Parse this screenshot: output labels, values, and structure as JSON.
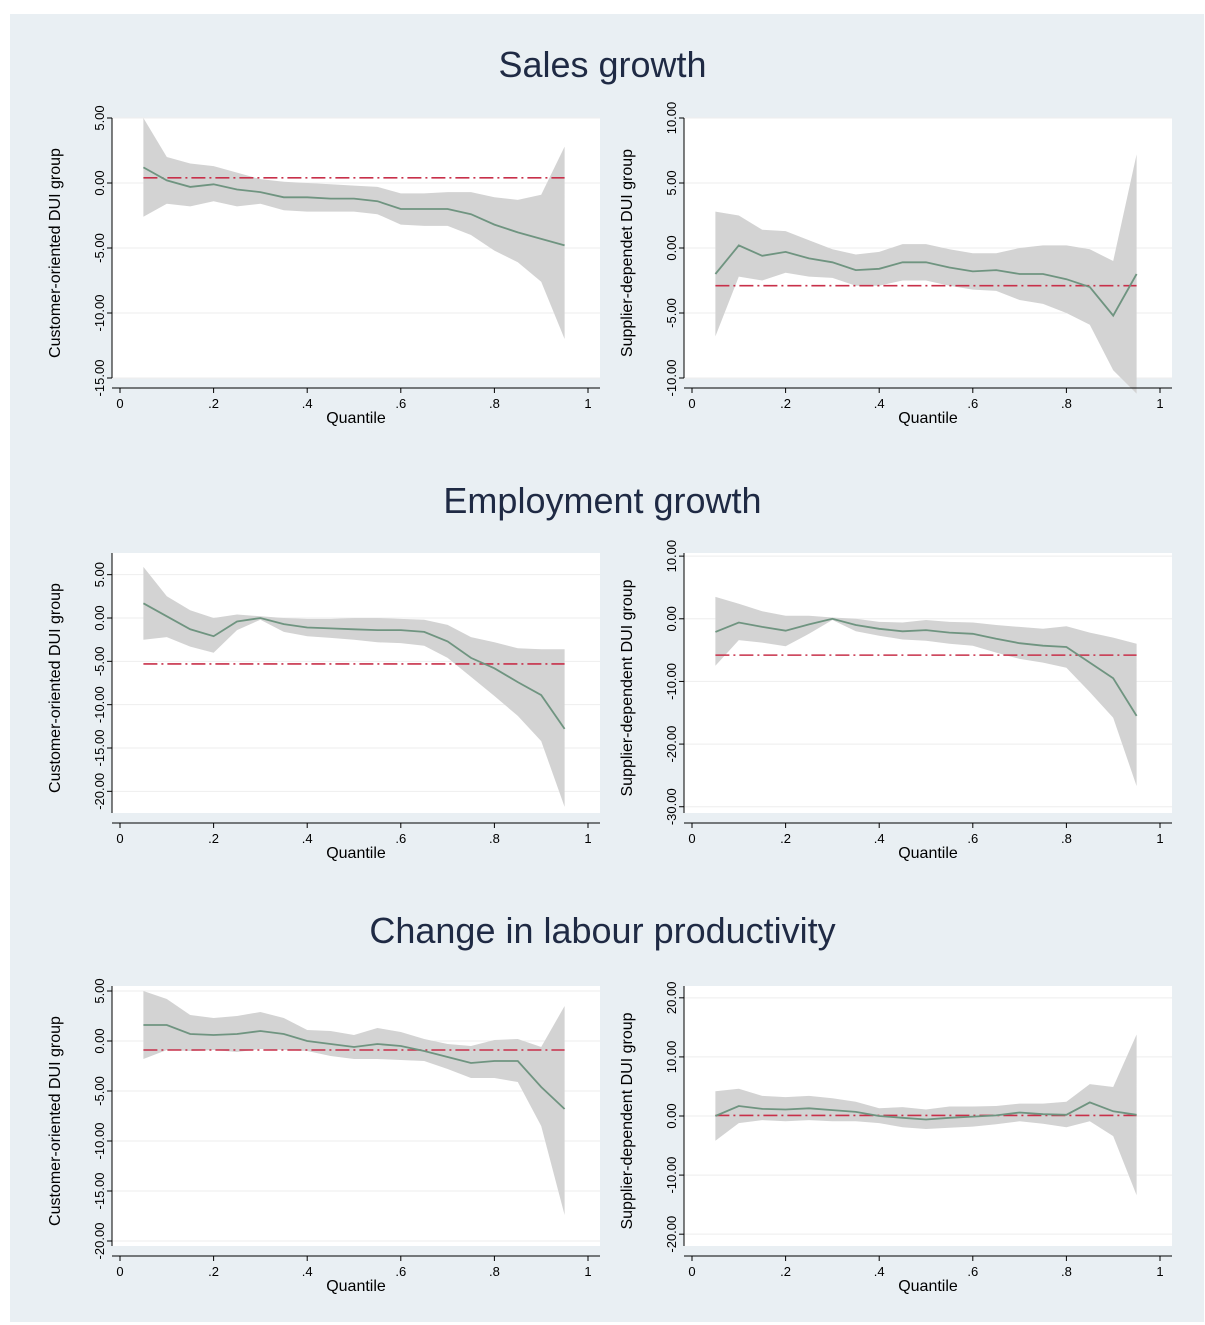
{
  "colors": {
    "band": "#d3d3d3",
    "line": "#6f9480",
    "ref": "#c8304a",
    "background": "#e9eff3",
    "plot": "#ffffff",
    "title": "#1f2a44"
  },
  "sections": [
    {
      "title": "Sales growth"
    },
    {
      "title": "Employment growth"
    },
    {
      "title": "Change in labour productivity"
    }
  ],
  "chart_data": [
    {
      "type": "line",
      "section": "Sales growth",
      "xlabel": "Quantile",
      "ylabel": "Customer-oriented DUI group",
      "xlim": [
        0,
        1
      ],
      "ylim": [
        -15,
        5
      ],
      "xticks": [
        0,
        0.2,
        0.4,
        0.6,
        0.8,
        1
      ],
      "xticklabels": [
        "0",
        ".2",
        ".4",
        ".6",
        ".8",
        "1"
      ],
      "yticks": [
        5,
        0,
        -5,
        -10,
        -15
      ],
      "yticklabels": [
        "5.00",
        "0.00",
        "-5.00",
        "-10.00",
        "-15.00"
      ],
      "x": [
        0.05,
        0.1,
        0.15,
        0.2,
        0.25,
        0.3,
        0.35,
        0.4,
        0.45,
        0.5,
        0.55,
        0.6,
        0.65,
        0.7,
        0.75,
        0.8,
        0.85,
        0.9,
        0.95
      ],
      "estimate": [
        1.2,
        0.2,
        -0.3,
        -0.1,
        -0.5,
        -0.7,
        -1.1,
        -1.1,
        -1.2,
        -1.2,
        -1.4,
        -2.0,
        -2.0,
        -2.0,
        -2.4,
        -3.2,
        -3.8,
        -4.3,
        -4.8
      ],
      "ci_upper": [
        5.0,
        2.0,
        1.5,
        1.3,
        0.8,
        0.3,
        0.1,
        0.0,
        -0.1,
        -0.2,
        -0.3,
        -0.8,
        -0.8,
        -0.7,
        -0.7,
        -1.1,
        -1.3,
        -0.9,
        2.8
      ],
      "ci_lower": [
        -2.6,
        -1.6,
        -1.8,
        -1.4,
        -1.8,
        -1.6,
        -2.1,
        -2.2,
        -2.2,
        -2.2,
        -2.4,
        -3.2,
        -3.3,
        -3.3,
        -4.0,
        -5.2,
        -6.1,
        -7.6,
        -12.0
      ],
      "reference": 0.4
    },
    {
      "type": "line",
      "section": "Sales growth",
      "xlabel": "Quantile",
      "ylabel": "Supplier-dependet DUI group",
      "xlim": [
        0,
        1
      ],
      "ylim": [
        -10,
        10
      ],
      "xticks": [
        0,
        0.2,
        0.4,
        0.6,
        0.8,
        1
      ],
      "xticklabels": [
        "0",
        ".2",
        ".4",
        ".6",
        ".8",
        "1"
      ],
      "yticks": [
        10,
        5,
        0,
        -5,
        -10
      ],
      "yticklabels": [
        "10.00",
        "5.00",
        "0.00",
        "-5.00",
        "-10.00"
      ],
      "x": [
        0.05,
        0.1,
        0.15,
        0.2,
        0.25,
        0.3,
        0.35,
        0.4,
        0.45,
        0.5,
        0.55,
        0.6,
        0.65,
        0.7,
        0.75,
        0.8,
        0.85,
        0.9,
        0.95
      ],
      "estimate": [
        -2.0,
        0.2,
        -0.6,
        -0.3,
        -0.8,
        -1.1,
        -1.7,
        -1.6,
        -1.1,
        -1.1,
        -1.5,
        -1.8,
        -1.7,
        -2.0,
        -2.0,
        -2.4,
        -3.0,
        -5.2,
        -2.0
      ],
      "ci_upper": [
        2.8,
        2.5,
        1.4,
        1.3,
        0.6,
        -0.1,
        -0.5,
        -0.3,
        0.3,
        0.3,
        -0.1,
        -0.4,
        -0.4,
        0.0,
        0.2,
        0.2,
        -0.1,
        -1.0,
        7.2
      ],
      "ci_lower": [
        -6.8,
        -2.2,
        -2.5,
        -1.9,
        -2.2,
        -2.3,
        -2.9,
        -2.9,
        -2.5,
        -2.5,
        -2.9,
        -3.2,
        -3.3,
        -4.0,
        -4.3,
        -5.0,
        -5.9,
        -9.4,
        -11.2
      ],
      "reference": -2.9
    },
    {
      "type": "line",
      "section": "Employment growth",
      "xlabel": "Quantile",
      "ylabel": "Customer-oriented DUI group",
      "xlim": [
        0,
        1
      ],
      "ylim": [
        -22.5,
        7.5
      ],
      "xticks": [
        0,
        0.2,
        0.4,
        0.6,
        0.8,
        1
      ],
      "xticklabels": [
        "0",
        ".2",
        ".4",
        ".6",
        ".8",
        "1"
      ],
      "yticks": [
        5,
        0,
        -5,
        -10,
        -15,
        -20
      ],
      "yticklabels": [
        "5.00",
        "0.00",
        "-5.00",
        "-10.00",
        "-15.00",
        "-20.00"
      ],
      "x": [
        0.05,
        0.1,
        0.15,
        0.2,
        0.25,
        0.3,
        0.35,
        0.4,
        0.45,
        0.5,
        0.55,
        0.6,
        0.65,
        0.7,
        0.75,
        0.8,
        0.85,
        0.9,
        0.95
      ],
      "estimate": [
        1.7,
        0.2,
        -1.3,
        -2.1,
        -0.4,
        0.0,
        -0.7,
        -1.1,
        -1.2,
        -1.3,
        -1.4,
        -1.4,
        -1.6,
        -2.7,
        -4.6,
        -5.8,
        -7.4,
        -8.9,
        -12.8
      ],
      "ci_upper": [
        5.9,
        2.5,
        0.9,
        0.0,
        0.4,
        0.2,
        0.0,
        -0.1,
        -0.1,
        0.0,
        0.0,
        -0.1,
        -0.2,
        -0.8,
        -2.2,
        -2.8,
        -3.5,
        -3.6,
        -3.6
      ],
      "ci_lower": [
        -2.5,
        -2.2,
        -3.3,
        -4.0,
        -1.4,
        -0.2,
        -1.6,
        -2.1,
        -2.3,
        -2.5,
        -2.8,
        -2.9,
        -3.2,
        -4.6,
        -6.8,
        -9.0,
        -11.3,
        -14.2,
        -21.8
      ],
      "reference": -5.3
    },
    {
      "type": "line",
      "section": "Employment growth",
      "xlabel": "Quantile",
      "ylabel": "Supplier-dependent DUI group",
      "xlim": [
        0,
        1
      ],
      "ylim": [
        -31,
        10.5
      ],
      "xticks": [
        0,
        0.2,
        0.4,
        0.6,
        0.8,
        1
      ],
      "xticklabels": [
        "0",
        ".2",
        ".4",
        ".6",
        ".8",
        "1"
      ],
      "yticks": [
        10,
        0,
        -10,
        -20,
        -30
      ],
      "yticklabels": [
        "10.00",
        "0.00",
        "-10.00",
        "-20.00",
        "-30.00"
      ],
      "x": [
        0.05,
        0.1,
        0.15,
        0.2,
        0.25,
        0.3,
        0.35,
        0.4,
        0.45,
        0.5,
        0.55,
        0.6,
        0.65,
        0.7,
        0.75,
        0.8,
        0.85,
        0.9,
        0.95
      ],
      "estimate": [
        -2.1,
        -0.6,
        -1.3,
        -1.9,
        -0.9,
        0.0,
        -1.0,
        -1.6,
        -2.0,
        -1.8,
        -2.2,
        -2.4,
        -3.2,
        -3.9,
        -4.3,
        -4.5,
        -7.0,
        -9.5,
        -15.5
      ],
      "ci_upper": [
        3.5,
        2.4,
        1.2,
        0.5,
        0.5,
        0.2,
        0.0,
        -0.5,
        -0.6,
        -0.2,
        -0.5,
        -0.6,
        -1.0,
        -1.3,
        -1.6,
        -1.2,
        -2.2,
        -3.0,
        -4.0
      ],
      "ci_lower": [
        -7.5,
        -3.4,
        -3.8,
        -4.4,
        -2.4,
        -0.2,
        -2.0,
        -2.7,
        -3.3,
        -3.5,
        -4.0,
        -4.3,
        -5.4,
        -6.4,
        -7.0,
        -7.8,
        -11.7,
        -15.8,
        -26.7
      ],
      "reference": -5.8
    },
    {
      "type": "line",
      "section": "Change in labour productivity",
      "xlabel": "Quantile",
      "ylabel": "Customer-oriented DUI group",
      "xlim": [
        0,
        1
      ],
      "ylim": [
        -20.5,
        5.5
      ],
      "xticks": [
        0,
        0.2,
        0.4,
        0.6,
        0.8,
        1
      ],
      "xticklabels": [
        "0",
        ".2",
        ".4",
        ".6",
        ".8",
        "1"
      ],
      "yticks": [
        5,
        0,
        -5,
        -10,
        -15,
        -20
      ],
      "yticklabels": [
        "5.00",
        "0.00",
        "-5.00",
        "-10.00",
        "-15.00",
        "-20.00"
      ],
      "x": [
        0.05,
        0.1,
        0.15,
        0.2,
        0.25,
        0.3,
        0.35,
        0.4,
        0.45,
        0.5,
        0.55,
        0.6,
        0.65,
        0.7,
        0.75,
        0.8,
        0.85,
        0.9,
        0.95
      ],
      "estimate": [
        1.6,
        1.6,
        0.7,
        0.6,
        0.7,
        1.0,
        0.7,
        0.0,
        -0.3,
        -0.6,
        -0.3,
        -0.5,
        -1.0,
        -1.6,
        -2.2,
        -2.0,
        -2.0,
        -4.6,
        -6.8
      ],
      "ci_upper": [
        5.0,
        4.2,
        2.6,
        2.3,
        2.5,
        2.9,
        2.3,
        1.1,
        1.0,
        0.6,
        1.3,
        0.9,
        0.2,
        -0.3,
        -0.5,
        0.1,
        0.2,
        -0.6,
        3.5
      ],
      "ci_lower": [
        -1.8,
        -0.9,
        -1.0,
        -0.9,
        -1.1,
        -0.8,
        -0.9,
        -1.0,
        -1.5,
        -1.8,
        -1.8,
        -1.9,
        -2.0,
        -2.8,
        -3.7,
        -3.7,
        -4.1,
        -8.5,
        -17.4
      ],
      "reference": -0.9
    },
    {
      "type": "line",
      "section": "Change in labour productivity",
      "xlabel": "Quantile",
      "ylabel": "Supplier-dependent DUI group",
      "xlim": [
        0,
        1
      ],
      "ylim": [
        -22,
        22
      ],
      "xticks": [
        0,
        0.2,
        0.4,
        0.6,
        0.8,
        1
      ],
      "xticklabels": [
        "0",
        ".2",
        ".4",
        ".6",
        ".8",
        "1"
      ],
      "yticks": [
        20,
        10,
        0,
        -10,
        -20
      ],
      "yticklabels": [
        "20.00",
        "10.00",
        "0.00",
        "-10.00",
        "-20.00"
      ],
      "x": [
        0.05,
        0.1,
        0.15,
        0.2,
        0.25,
        0.3,
        0.35,
        0.4,
        0.45,
        0.5,
        0.55,
        0.6,
        0.65,
        0.7,
        0.75,
        0.8,
        0.85,
        0.9,
        0.95
      ],
      "estimate": [
        0.0,
        1.7,
        1.2,
        1.1,
        1.3,
        1.0,
        0.7,
        0.0,
        -0.3,
        -0.6,
        -0.3,
        -0.1,
        0.1,
        0.6,
        0.3,
        0.2,
        2.3,
        0.8,
        0.2
      ],
      "ci_upper": [
        4.2,
        4.6,
        3.4,
        3.2,
        3.4,
        3.0,
        2.4,
        1.3,
        1.5,
        1.1,
        1.6,
        1.6,
        1.7,
        2.1,
        2.1,
        2.4,
        5.4,
        4.9,
        13.8
      ],
      "ci_lower": [
        -4.2,
        -1.2,
        -0.7,
        -0.9,
        -0.7,
        -0.9,
        -0.9,
        -1.2,
        -1.9,
        -2.2,
        -2.0,
        -1.8,
        -1.4,
        -0.9,
        -1.3,
        -1.9,
        -0.9,
        -3.4,
        -13.4
      ],
      "reference": 0.1
    }
  ]
}
